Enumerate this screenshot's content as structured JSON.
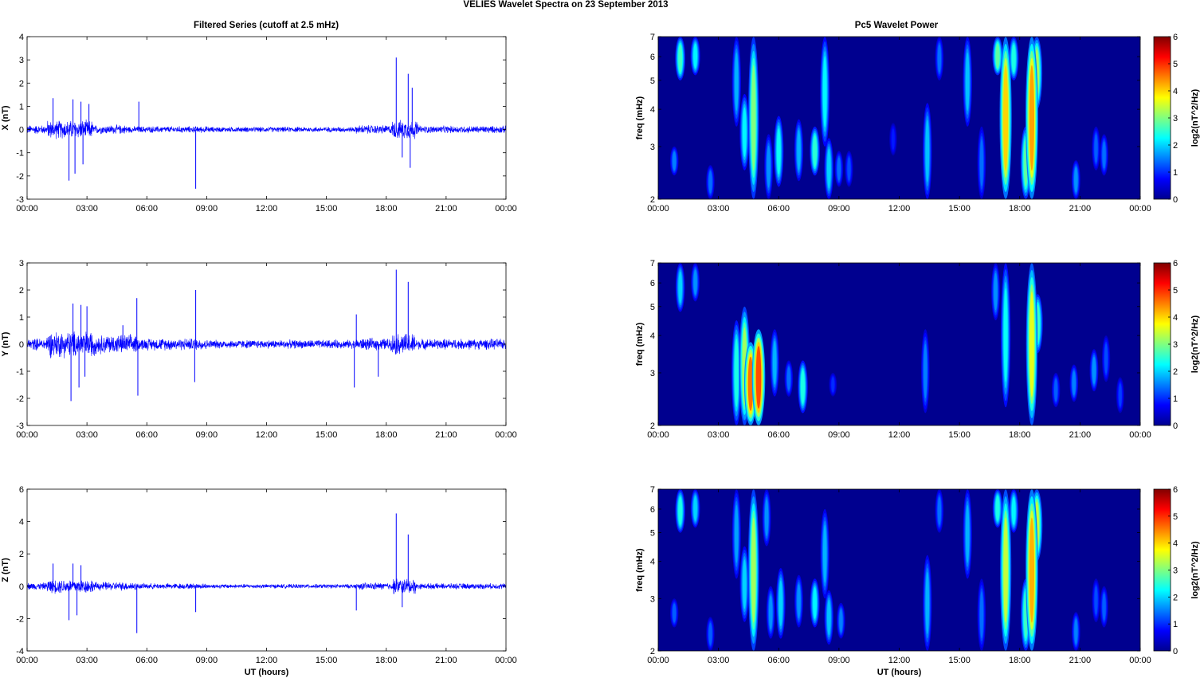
{
  "figure": {
    "title": "VELIES Wavelet Spectra on 23 September 2013"
  },
  "left_column_title": "Filtered Series (cutoff at 2.5 mHz)",
  "right_column_title": "Pc5 Wavelet Power",
  "colors": {
    "trace": "#0000ff",
    "background": "#00008f"
  },
  "chart_data": [
    {
      "type": "line",
      "ylabel": "X (nT)",
      "xlabel": "",
      "xlim": [
        0,
        24
      ],
      "ylim": [
        -3,
        4
      ],
      "yticks": [
        -3,
        -2,
        -1,
        0,
        1,
        2,
        3,
        4
      ],
      "xticks": [
        "00:00",
        "03:00",
        "06:00",
        "09:00",
        "12:00",
        "15:00",
        "18:00",
        "21:00",
        "00:00"
      ],
      "noise_bands": [
        {
          "t0": 0,
          "t1": 1.0,
          "amp": 0.22
        },
        {
          "t0": 1.0,
          "t1": 3.3,
          "amp": 0.45
        },
        {
          "t0": 3.3,
          "t1": 5.0,
          "amp": 0.22
        },
        {
          "t0": 5.0,
          "t1": 9.2,
          "amp": 0.16
        },
        {
          "t0": 9.2,
          "t1": 16.5,
          "amp": 0.13
        },
        {
          "t0": 16.5,
          "t1": 18.3,
          "amp": 0.22
        },
        {
          "t0": 18.3,
          "t1": 19.6,
          "amp": 0.45
        },
        {
          "t0": 19.6,
          "t1": 24,
          "amp": 0.18
        }
      ],
      "spikes": [
        {
          "t": 1.3,
          "v": 1.35
        },
        {
          "t": 2.1,
          "v": -2.2
        },
        {
          "t": 2.3,
          "v": 1.3
        },
        {
          "t": 2.4,
          "v": -1.9
        },
        {
          "t": 2.7,
          "v": 1.2
        },
        {
          "t": 2.8,
          "v": -1.5
        },
        {
          "t": 3.1,
          "v": 1.1
        },
        {
          "t": 5.6,
          "v": 1.2
        },
        {
          "t": 8.45,
          "v": -2.55
        },
        {
          "t": 18.5,
          "v": 3.1
        },
        {
          "t": 18.8,
          "v": -1.2
        },
        {
          "t": 19.1,
          "v": 2.4
        },
        {
          "t": 19.2,
          "v": -1.65
        },
        {
          "t": 19.3,
          "v": 1.8
        }
      ]
    },
    {
      "type": "line",
      "ylabel": "Y (nT)",
      "xlabel": "",
      "xlim": [
        0,
        24
      ],
      "ylim": [
        -3,
        3
      ],
      "yticks": [
        -3,
        -2,
        -1,
        0,
        1,
        2,
        3
      ],
      "xticks": [
        "00:00",
        "03:00",
        "06:00",
        "09:00",
        "12:00",
        "15:00",
        "18:00",
        "21:00",
        "00:00"
      ],
      "noise_bands": [
        {
          "t0": 0,
          "t1": 1.0,
          "amp": 0.25
        },
        {
          "t0": 1.0,
          "t1": 3.4,
          "amp": 0.55
        },
        {
          "t0": 3.4,
          "t1": 5.5,
          "amp": 0.4
        },
        {
          "t0": 5.5,
          "t1": 9.0,
          "amp": 0.25
        },
        {
          "t0": 9.0,
          "t1": 16.5,
          "amp": 0.18
        },
        {
          "t0": 16.5,
          "t1": 18.3,
          "amp": 0.25
        },
        {
          "t0": 18.3,
          "t1": 19.5,
          "amp": 0.45
        },
        {
          "t0": 19.5,
          "t1": 24,
          "amp": 0.22
        }
      ],
      "spikes": [
        {
          "t": 2.2,
          "v": -2.1
        },
        {
          "t": 2.3,
          "v": 1.5
        },
        {
          "t": 2.7,
          "v": 1.45
        },
        {
          "t": 2.6,
          "v": -1.6
        },
        {
          "t": 3.0,
          "v": 1.4
        },
        {
          "t": 2.9,
          "v": -1.2
        },
        {
          "t": 4.8,
          "v": 0.7
        },
        {
          "t": 5.5,
          "v": 1.7
        },
        {
          "t": 5.55,
          "v": -1.9
        },
        {
          "t": 8.45,
          "v": 2.0
        },
        {
          "t": 8.4,
          "v": -1.4
        },
        {
          "t": 16.5,
          "v": 1.1
        },
        {
          "t": 16.4,
          "v": -1.6
        },
        {
          "t": 17.6,
          "v": -1.2
        },
        {
          "t": 18.5,
          "v": 2.75
        },
        {
          "t": 19.1,
          "v": 2.3
        }
      ]
    },
    {
      "type": "line",
      "ylabel": "Z (nT)",
      "xlabel": "UT (hours)",
      "xlim": [
        0,
        24
      ],
      "ylim": [
        -4,
        6
      ],
      "yticks": [
        -4,
        -2,
        0,
        2,
        4,
        6
      ],
      "xticks": [
        "00:00",
        "03:00",
        "06:00",
        "09:00",
        "12:00",
        "15:00",
        "18:00",
        "21:00",
        "00:00"
      ],
      "noise_bands": [
        {
          "t0": 0,
          "t1": 1.0,
          "amp": 0.25
        },
        {
          "t0": 1.0,
          "t1": 3.3,
          "amp": 0.5
        },
        {
          "t0": 3.3,
          "t1": 5.5,
          "amp": 0.3
        },
        {
          "t0": 5.5,
          "t1": 9.0,
          "amp": 0.2
        },
        {
          "t0": 9.0,
          "t1": 16.5,
          "amp": 0.15
        },
        {
          "t0": 16.5,
          "t1": 18.3,
          "amp": 0.25
        },
        {
          "t0": 18.3,
          "t1": 19.5,
          "amp": 0.55
        },
        {
          "t0": 19.5,
          "t1": 24,
          "amp": 0.2
        }
      ],
      "spikes": [
        {
          "t": 1.3,
          "v": 1.4
        },
        {
          "t": 2.1,
          "v": -2.1
        },
        {
          "t": 2.3,
          "v": 1.4
        },
        {
          "t": 2.5,
          "v": -1.8
        },
        {
          "t": 2.7,
          "v": 1.3
        },
        {
          "t": 5.5,
          "v": -2.9
        },
        {
          "t": 8.45,
          "v": -1.6
        },
        {
          "t": 16.5,
          "v": -1.5
        },
        {
          "t": 18.5,
          "v": 4.5
        },
        {
          "t": 18.8,
          "v": -1.3
        },
        {
          "t": 19.1,
          "v": 3.2
        }
      ]
    },
    {
      "type": "heatmap",
      "ylabel": "freq (mHz)",
      "xlabel": "",
      "xlim": [
        0,
        24
      ],
      "ylim": [
        2,
        7
      ],
      "yscale": "log",
      "yticks": [
        2,
        3,
        4,
        5,
        6,
        7
      ],
      "xticks": [
        "00:00",
        "03:00",
        "06:00",
        "09:00",
        "12:00",
        "15:00",
        "18:00",
        "21:00",
        "00:00"
      ],
      "colorbar": {
        "label": "log2(nT^2/Hz)",
        "ticks": [
          0,
          1,
          2,
          3,
          4,
          5,
          6
        ],
        "range": [
          0,
          6
        ]
      },
      "blobs": [
        {
          "t": 1.1,
          "f0": 5.0,
          "f1": 7.0,
          "p": 2.6
        },
        {
          "t": 1.85,
          "f0": 5.2,
          "f1": 7.0,
          "p": 2.2
        },
        {
          "t": 0.8,
          "f0": 2.4,
          "f1": 3.0,
          "p": 1.5
        },
        {
          "t": 2.6,
          "f0": 2.0,
          "f1": 2.6,
          "p": 1.4
        },
        {
          "t": 3.9,
          "f0": 3.5,
          "f1": 7.0,
          "p": 1.8
        },
        {
          "t": 4.3,
          "f0": 2.5,
          "f1": 4.5,
          "p": 2.2
        },
        {
          "t": 4.75,
          "f0": 2.0,
          "f1": 7.0,
          "p": 3.0
        },
        {
          "t": 5.5,
          "f0": 2.0,
          "f1": 3.3,
          "p": 1.6
        },
        {
          "t": 6.0,
          "f0": 2.2,
          "f1": 3.8,
          "p": 2.3
        },
        {
          "t": 7.0,
          "f0": 2.3,
          "f1": 3.7,
          "p": 1.8
        },
        {
          "t": 7.8,
          "f0": 2.4,
          "f1": 3.5,
          "p": 2.5
        },
        {
          "t": 8.3,
          "f0": 3.0,
          "f1": 7.0,
          "p": 2.2
        },
        {
          "t": 8.5,
          "f0": 2.0,
          "f1": 3.2,
          "p": 2.0
        },
        {
          "t": 9.0,
          "f0": 2.2,
          "f1": 2.9,
          "p": 1.4
        },
        {
          "t": 9.5,
          "f0": 2.2,
          "f1": 2.9,
          "p": 1.2
        },
        {
          "t": 11.7,
          "f0": 2.8,
          "f1": 3.6,
          "p": 0.9
        },
        {
          "t": 13.4,
          "f0": 2.0,
          "f1": 4.2,
          "p": 1.9
        },
        {
          "t": 14.0,
          "f0": 5.0,
          "f1": 7.0,
          "p": 1.4
        },
        {
          "t": 15.4,
          "f0": 3.5,
          "f1": 7.0,
          "p": 1.9
        },
        {
          "t": 16.1,
          "f0": 2.0,
          "f1": 3.5,
          "p": 1.4
        },
        {
          "t": 16.9,
          "f0": 5.2,
          "f1": 7.0,
          "p": 2.8
        },
        {
          "t": 17.3,
          "f0": 2.0,
          "f1": 7.0,
          "p": 4.0
        },
        {
          "t": 17.7,
          "f0": 5.0,
          "f1": 7.0,
          "p": 2.4
        },
        {
          "t": 18.3,
          "f0": 2.0,
          "f1": 3.5,
          "p": 2.8
        },
        {
          "t": 18.6,
          "f0": 2.0,
          "f1": 7.0,
          "p": 4.3
        },
        {
          "t": 18.85,
          "f0": 4.0,
          "f1": 7.0,
          "p": 3.2
        },
        {
          "t": 20.8,
          "f0": 2.0,
          "f1": 2.7,
          "p": 1.6
        },
        {
          "t": 21.8,
          "f0": 2.5,
          "f1": 3.5,
          "p": 1.3
        },
        {
          "t": 22.2,
          "f0": 2.4,
          "f1": 3.3,
          "p": 1.4
        }
      ]
    },
    {
      "type": "heatmap",
      "ylabel": "freq (mHz)",
      "xlabel": "",
      "xlim": [
        0,
        24
      ],
      "ylim": [
        2,
        7
      ],
      "yscale": "log",
      "yticks": [
        2,
        3,
        4,
        5,
        6,
        7
      ],
      "xticks": [
        "00:00",
        "03:00",
        "06:00",
        "09:00",
        "12:00",
        "15:00",
        "18:00",
        "21:00",
        "00:00"
      ],
      "colorbar": {
        "label": "log2(nT^2/Hz)",
        "ticks": [
          0,
          1,
          2,
          3,
          4,
          5,
          6
        ],
        "range": [
          0,
          6
        ]
      },
      "blobs": [
        {
          "t": 1.1,
          "f0": 4.8,
          "f1": 7.0,
          "p": 2.0
        },
        {
          "t": 1.85,
          "f0": 5.2,
          "f1": 7.0,
          "p": 1.6
        },
        {
          "t": 3.9,
          "f0": 2.0,
          "f1": 4.5,
          "p": 2.4
        },
        {
          "t": 4.3,
          "f0": 2.0,
          "f1": 5.0,
          "p": 3.2
        },
        {
          "t": 4.6,
          "f0": 2.0,
          "f1": 3.8,
          "p": 4.6
        },
        {
          "t": 5.0,
          "f0": 2.0,
          "f1": 4.2,
          "p": 4.8
        },
        {
          "t": 5.8,
          "f0": 2.5,
          "f1": 4.2,
          "p": 1.8
        },
        {
          "t": 6.5,
          "f0": 2.5,
          "f1": 3.3,
          "p": 1.4
        },
        {
          "t": 7.2,
          "f0": 2.2,
          "f1": 3.3,
          "p": 2.4
        },
        {
          "t": 8.7,
          "f0": 2.5,
          "f1": 3.0,
          "p": 1.0
        },
        {
          "t": 13.3,
          "f0": 2.2,
          "f1": 4.2,
          "p": 1.5
        },
        {
          "t": 16.8,
          "f0": 4.5,
          "f1": 7.0,
          "p": 1.6
        },
        {
          "t": 17.3,
          "f0": 2.3,
          "f1": 7.0,
          "p": 2.3
        },
        {
          "t": 18.6,
          "f0": 2.0,
          "f1": 7.0,
          "p": 3.6
        },
        {
          "t": 18.9,
          "f0": 3.5,
          "f1": 5.5,
          "p": 2.6
        },
        {
          "t": 19.8,
          "f0": 2.3,
          "f1": 3.0,
          "p": 1.3
        },
        {
          "t": 20.7,
          "f0": 2.4,
          "f1": 3.2,
          "p": 1.5
        },
        {
          "t": 21.7,
          "f0": 2.6,
          "f1": 3.6,
          "p": 1.6
        },
        {
          "t": 22.3,
          "f0": 2.8,
          "f1": 4.0,
          "p": 1.2
        },
        {
          "t": 23.0,
          "f0": 2.2,
          "f1": 2.9,
          "p": 1.1
        }
      ]
    },
    {
      "type": "heatmap",
      "ylabel": "freq (mHz)",
      "xlabel": "UT (hours)",
      "xlim": [
        0,
        24
      ],
      "ylim": [
        2,
        7
      ],
      "yscale": "log",
      "yticks": [
        2,
        3,
        4,
        5,
        6,
        7
      ],
      "xticks": [
        "00:00",
        "03:00",
        "06:00",
        "09:00",
        "12:00",
        "15:00",
        "18:00",
        "21:00",
        "00:00"
      ],
      "colorbar": {
        "label": "log2(nT^2/Hz)",
        "ticks": [
          0,
          1,
          2,
          3,
          4,
          5,
          6
        ],
        "range": [
          0,
          6
        ]
      },
      "blobs": [
        {
          "t": 1.1,
          "f0": 5.0,
          "f1": 7.0,
          "p": 2.4
        },
        {
          "t": 1.85,
          "f0": 5.2,
          "f1": 7.0,
          "p": 2.0
        },
        {
          "t": 0.8,
          "f0": 2.4,
          "f1": 3.0,
          "p": 1.3
        },
        {
          "t": 2.6,
          "f0": 2.0,
          "f1": 2.6,
          "p": 1.3
        },
        {
          "t": 3.9,
          "f0": 3.5,
          "f1": 7.0,
          "p": 1.7
        },
        {
          "t": 4.3,
          "f0": 2.5,
          "f1": 4.5,
          "p": 2.0
        },
        {
          "t": 4.75,
          "f0": 2.0,
          "f1": 7.0,
          "p": 3.2
        },
        {
          "t": 5.4,
          "f0": 4.5,
          "f1": 7.0,
          "p": 1.6
        },
        {
          "t": 5.6,
          "f0": 2.2,
          "f1": 3.3,
          "p": 1.6
        },
        {
          "t": 6.1,
          "f0": 2.2,
          "f1": 3.8,
          "p": 2.0
        },
        {
          "t": 7.0,
          "f0": 2.4,
          "f1": 3.6,
          "p": 1.6
        },
        {
          "t": 7.8,
          "f0": 2.4,
          "f1": 3.5,
          "p": 2.2
        },
        {
          "t": 8.3,
          "f0": 3.0,
          "f1": 6.0,
          "p": 1.8
        },
        {
          "t": 8.5,
          "f0": 2.1,
          "f1": 3.2,
          "p": 1.9
        },
        {
          "t": 9.1,
          "f0": 2.2,
          "f1": 2.9,
          "p": 1.5
        },
        {
          "t": 13.4,
          "f0": 2.0,
          "f1": 4.2,
          "p": 1.8
        },
        {
          "t": 14.0,
          "f0": 5.0,
          "f1": 7.0,
          "p": 1.4
        },
        {
          "t": 15.4,
          "f0": 3.5,
          "f1": 7.0,
          "p": 1.8
        },
        {
          "t": 16.1,
          "f0": 2.0,
          "f1": 3.5,
          "p": 1.4
        },
        {
          "t": 16.9,
          "f0": 5.2,
          "f1": 7.0,
          "p": 2.4
        },
        {
          "t": 17.3,
          "f0": 2.0,
          "f1": 7.0,
          "p": 3.4
        },
        {
          "t": 17.7,
          "f0": 5.0,
          "f1": 7.0,
          "p": 2.2
        },
        {
          "t": 18.3,
          "f0": 2.0,
          "f1": 3.5,
          "p": 2.6
        },
        {
          "t": 18.6,
          "f0": 2.0,
          "f1": 7.0,
          "p": 4.2
        },
        {
          "t": 18.85,
          "f0": 4.0,
          "f1": 7.0,
          "p": 3.4
        },
        {
          "t": 20.8,
          "f0": 2.0,
          "f1": 2.7,
          "p": 1.5
        },
        {
          "t": 21.8,
          "f0": 2.5,
          "f1": 3.5,
          "p": 1.2
        },
        {
          "t": 22.2,
          "f0": 2.4,
          "f1": 3.3,
          "p": 1.3
        }
      ]
    }
  ]
}
